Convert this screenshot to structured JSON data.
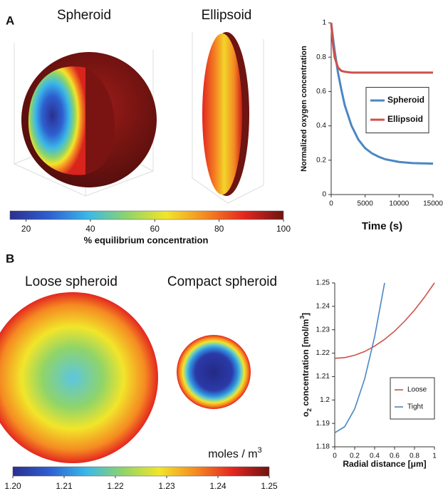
{
  "labels": {
    "panel_a": "A",
    "panel_b": "B",
    "spheroid": "Spheroid",
    "ellipsoid": "Ellipsoid",
    "loose": "Loose spheroid",
    "compact": "Compact spheroid"
  },
  "chart_data": [
    {
      "type": "line",
      "xlabel": "Time (s)",
      "ylabel": "Normalized oxygen concentration",
      "x": [
        0,
        250,
        500,
        1000,
        1500,
        2000,
        3000,
        4000,
        5000,
        6000,
        7000,
        8000,
        10000,
        12000,
        15000
      ],
      "series": [
        {
          "name": "Spheroid",
          "color": "#4a86c5",
          "values": [
            1,
            0.916,
            0.84,
            0.71,
            0.61,
            0.52,
            0.4,
            0.32,
            0.27,
            0.24,
            0.22,
            0.205,
            0.19,
            0.183,
            0.18
          ]
        },
        {
          "name": "Ellipsoid",
          "color": "#d0504a",
          "values": [
            1,
            0.88,
            0.8,
            0.74,
            0.72,
            0.715,
            0.71,
            0.71,
            0.71,
            0.71,
            0.71,
            0.71,
            0.71,
            0.71,
            0.71
          ]
        }
      ],
      "xlim": [
        0,
        15000
      ],
      "xticks": [
        0,
        5000,
        10000,
        15000
      ],
      "ylim": [
        0,
        1
      ],
      "yticks": [
        0,
        0.2,
        0.4,
        0.6,
        0.8,
        1
      ],
      "legend": "center-right"
    },
    {
      "type": "colorbar",
      "label": "% equilibrium concentration",
      "xlim": [
        15,
        100
      ],
      "xticks": [
        20,
        40,
        60,
        80,
        100
      ],
      "colormap": [
        "#2b2f8f",
        "#2e5fd0",
        "#3bb8e8",
        "#8fd46a",
        "#f2e52a",
        "#f58a22",
        "#e3261f",
        "#6e1412"
      ]
    },
    {
      "type": "line",
      "xlabel": "Radial distance [μm]",
      "ylabel": {
        "main": "o",
        "sub": "2",
        "rest": " concentration [mol/m",
        "sup": "3",
        "end": "]"
      },
      "series": [
        {
          "name": "Loose",
          "color": "#d0504a",
          "x": [
            0,
            0.1,
            0.2,
            0.3,
            0.4,
            0.5,
            0.6,
            0.7,
            0.8,
            0.9,
            1
          ],
          "values": [
            1.2178,
            1.2181,
            1.2191,
            1.2207,
            1.223,
            1.2259,
            1.2294,
            1.2336,
            1.2384,
            1.2439,
            1.25
          ]
        },
        {
          "name": "Tight",
          "color": "#4a86c5",
          "x": [
            0,
            0.1,
            0.2,
            0.3,
            0.4,
            0.5
          ],
          "values": [
            1.186,
            1.1886,
            1.1962,
            1.209,
            1.227,
            1.25
          ]
        }
      ],
      "xlim": [
        0,
        1
      ],
      "xticks": [
        0,
        0.2,
        0.4,
        0.6,
        0.8,
        1
      ],
      "ylim": [
        1.18,
        1.25
      ],
      "yticks": [
        1.18,
        1.19,
        1.2,
        1.21,
        1.22,
        1.23,
        1.24,
        1.25
      ],
      "legend": "lower-right"
    },
    {
      "type": "colorbar",
      "label": {
        "main": "moles / m",
        "sup": "3"
      },
      "xlim": [
        1.2,
        1.25
      ],
      "xticks": [
        {
          "value": 1.2,
          "label": "1.20"
        },
        {
          "value": 1.21,
          "label": "1.21"
        },
        {
          "value": 1.22,
          "label": "1.22"
        },
        {
          "value": 1.23,
          "label": "1.23"
        },
        {
          "value": 1.24,
          "label": "1.24"
        },
        {
          "value": 1.25,
          "label": "1.25"
        }
      ],
      "colormap": [
        "#2b2f8f",
        "#2e5fd0",
        "#3bb8e8",
        "#8fd46a",
        "#f2e52a",
        "#f58a22",
        "#e3261f",
        "#6e1412"
      ]
    }
  ]
}
